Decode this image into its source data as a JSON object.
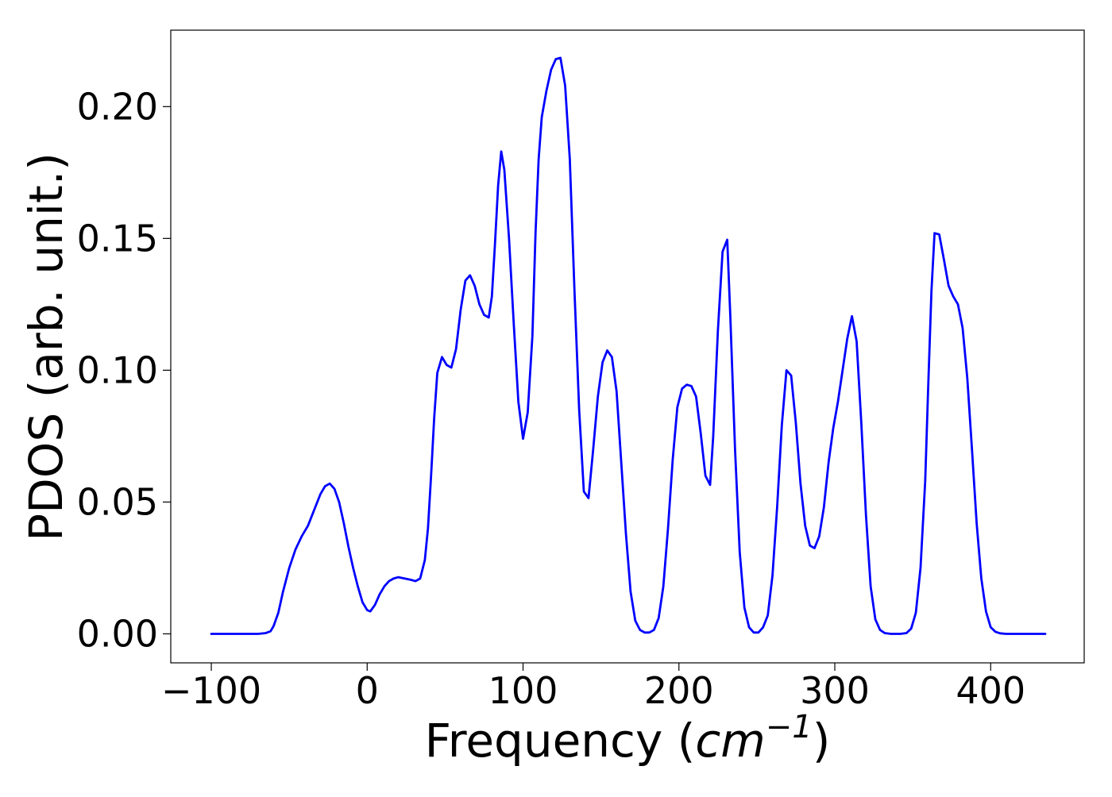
{
  "chart_data": {
    "type": "line",
    "title": "",
    "xlabel": {
      "prefix": "Frequency (",
      "italic_base": "cm",
      "superscript": "−1",
      "suffix": ")"
    },
    "ylabel": "PDOS (arb. unit.)",
    "xlim": [
      -126,
      460
    ],
    "ylim": [
      -0.011,
      0.229
    ],
    "x_ticks": [
      -100,
      0,
      100,
      200,
      300,
      400
    ],
    "x_tick_labels": [
      "−100",
      "0",
      "100",
      "200",
      "300",
      "400"
    ],
    "y_ticks": [
      0.0,
      0.05,
      0.1,
      0.15,
      0.2
    ],
    "y_tick_labels": [
      "0.00",
      "0.05",
      "0.10",
      "0.15",
      "0.20"
    ],
    "grid": false,
    "legend": "none",
    "colors": {
      "series": "#0000ff",
      "axes": "#000000",
      "background": "#ffffff"
    },
    "series": [
      {
        "color": "#0000ff",
        "points": [
          [
            -100,
            0.0
          ],
          [
            -70,
            0.0
          ],
          [
            -65,
            0.0003
          ],
          [
            -62,
            0.001
          ],
          [
            -60,
            0.003
          ],
          [
            -57,
            0.008
          ],
          [
            -54,
            0.016
          ],
          [
            -50,
            0.025
          ],
          [
            -46,
            0.032
          ],
          [
            -42,
            0.037
          ],
          [
            -38,
            0.041
          ],
          [
            -34,
            0.047
          ],
          [
            -30,
            0.053
          ],
          [
            -27,
            0.056
          ],
          [
            -24,
            0.057
          ],
          [
            -21,
            0.055
          ],
          [
            -18,
            0.05
          ],
          [
            -15,
            0.042
          ],
          [
            -12,
            0.033
          ],
          [
            -9,
            0.025
          ],
          [
            -6,
            0.018
          ],
          [
            -3,
            0.012
          ],
          [
            0,
            0.009
          ],
          [
            2,
            0.0085
          ],
          [
            5,
            0.011
          ],
          [
            8,
            0.015
          ],
          [
            11,
            0.018
          ],
          [
            14,
            0.02
          ],
          [
            17,
            0.021
          ],
          [
            20,
            0.0215
          ],
          [
            24,
            0.021
          ],
          [
            28,
            0.0205
          ],
          [
            31,
            0.02
          ],
          [
            34,
            0.021
          ],
          [
            37,
            0.028
          ],
          [
            39,
            0.04
          ],
          [
            41,
            0.06
          ],
          [
            43,
            0.082
          ],
          [
            45,
            0.099
          ],
          [
            48,
            0.105
          ],
          [
            51,
            0.102
          ],
          [
            54,
            0.101
          ],
          [
            57,
            0.108
          ],
          [
            60,
            0.123
          ],
          [
            63,
            0.134
          ],
          [
            66,
            0.136
          ],
          [
            69,
            0.132
          ],
          [
            72,
            0.125
          ],
          [
            75,
            0.121
          ],
          [
            78,
            0.12
          ],
          [
            80,
            0.128
          ],
          [
            82,
            0.148
          ],
          [
            84,
            0.17
          ],
          [
            86,
            0.183
          ],
          [
            88,
            0.176
          ],
          [
            91,
            0.15
          ],
          [
            94,
            0.118
          ],
          [
            97,
            0.088
          ],
          [
            100,
            0.074
          ],
          [
            103,
            0.084
          ],
          [
            106,
            0.113
          ],
          [
            108,
            0.152
          ],
          [
            110,
            0.18
          ],
          [
            112,
            0.196
          ],
          [
            115,
            0.206
          ],
          [
            118,
            0.214
          ],
          [
            121,
            0.218
          ],
          [
            124,
            0.2185
          ],
          [
            127,
            0.208
          ],
          [
            130,
            0.18
          ],
          [
            133,
            0.13
          ],
          [
            136,
            0.085
          ],
          [
            139,
            0.054
          ],
          [
            142,
            0.0515
          ],
          [
            145,
            0.07
          ],
          [
            148,
            0.09
          ],
          [
            151,
            0.103
          ],
          [
            154,
            0.1075
          ],
          [
            157,
            0.105
          ],
          [
            160,
            0.092
          ],
          [
            163,
            0.065
          ],
          [
            166,
            0.038
          ],
          [
            169,
            0.016
          ],
          [
            172,
            0.005
          ],
          [
            175,
            0.0015
          ],
          [
            178,
            0.0005
          ],
          [
            181,
            0.0005
          ],
          [
            184,
            0.0015
          ],
          [
            187,
            0.006
          ],
          [
            190,
            0.018
          ],
          [
            193,
            0.04
          ],
          [
            196,
            0.066
          ],
          [
            199,
            0.086
          ],
          [
            202,
            0.093
          ],
          [
            205,
            0.0945
          ],
          [
            208,
            0.094
          ],
          [
            211,
            0.09
          ],
          [
            214,
            0.076
          ],
          [
            217,
            0.06
          ],
          [
            220,
            0.0565
          ],
          [
            222,
            0.075
          ],
          [
            225,
            0.115
          ],
          [
            228,
            0.145
          ],
          [
            231,
            0.1495
          ],
          [
            233,
            0.12
          ],
          [
            236,
            0.07
          ],
          [
            239,
            0.031
          ],
          [
            242,
            0.01
          ],
          [
            245,
            0.0025
          ],
          [
            248,
            0.0005
          ],
          [
            251,
            0.0005
          ],
          [
            254,
            0.0025
          ],
          [
            257,
            0.007
          ],
          [
            260,
            0.022
          ],
          [
            263,
            0.048
          ],
          [
            266,
            0.079
          ],
          [
            269,
            0.1
          ],
          [
            272,
            0.098
          ],
          [
            275,
            0.08
          ],
          [
            278,
            0.057
          ],
          [
            281,
            0.041
          ],
          [
            284,
            0.0335
          ],
          [
            287,
            0.0325
          ],
          [
            290,
            0.037
          ],
          [
            293,
            0.048
          ],
          [
            296,
            0.065
          ],
          [
            299,
            0.078
          ],
          [
            302,
            0.088
          ],
          [
            305,
            0.1
          ],
          [
            308,
            0.112
          ],
          [
            311,
            0.1205
          ],
          [
            314,
            0.111
          ],
          [
            317,
            0.08
          ],
          [
            320,
            0.045
          ],
          [
            323,
            0.018
          ],
          [
            326,
            0.0055
          ],
          [
            329,
            0.0015
          ],
          [
            332,
            0.0003
          ],
          [
            336,
            0.0
          ],
          [
            342,
            0.0
          ],
          [
            346,
            0.0003
          ],
          [
            349,
            0.002
          ],
          [
            352,
            0.008
          ],
          [
            355,
            0.025
          ],
          [
            358,
            0.058
          ],
          [
            360,
            0.095
          ],
          [
            362,
            0.13
          ],
          [
            364,
            0.152
          ],
          [
            367,
            0.1515
          ],
          [
            370,
            0.142
          ],
          [
            373,
            0.132
          ],
          [
            376,
            0.128
          ],
          [
            379,
            0.125
          ],
          [
            382,
            0.116
          ],
          [
            385,
            0.097
          ],
          [
            388,
            0.07
          ],
          [
            391,
            0.042
          ],
          [
            394,
            0.021
          ],
          [
            397,
            0.0085
          ],
          [
            400,
            0.0025
          ],
          [
            403,
            0.0008
          ],
          [
            406,
            0.0002
          ],
          [
            410,
            0.0
          ],
          [
            435,
            0.0
          ]
        ]
      }
    ]
  }
}
